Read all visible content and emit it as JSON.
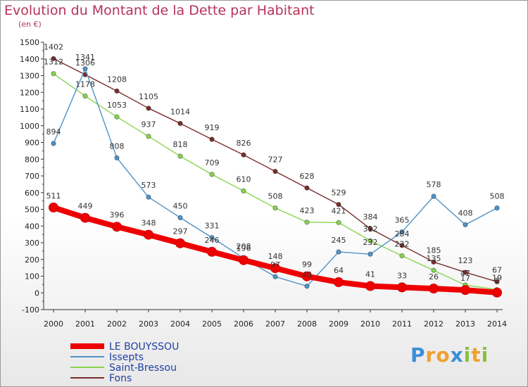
{
  "chart_data": {
    "type": "line",
    "title": "Evolution du Montant de la Dette par Habitant",
    "unit": "(en €)",
    "x": [
      2000,
      2001,
      2002,
      2003,
      2004,
      2005,
      2006,
      2007,
      2008,
      2009,
      2010,
      2011,
      2012,
      2013,
      2014
    ],
    "ylim": [
      -100,
      1500
    ],
    "yticks": [
      -100,
      0,
      100,
      200,
      300,
      400,
      500,
      600,
      700,
      800,
      900,
      1000,
      1100,
      1200,
      1300,
      1400,
      1500
    ],
    "grid": false,
    "legend_position": "bottom-left",
    "series": [
      {
        "name": "LE BOUYSSOU",
        "color": "#ee0000",
        "values": [
          511,
          449,
          396,
          348,
          297,
          246,
          196,
          148,
          99,
          64,
          41,
          33,
          26,
          17,
          2
        ]
      },
      {
        "name": "Issepts",
        "color": "#4f93c8",
        "values": [
          894,
          1341,
          808,
          573,
          450,
          331,
          208,
          97,
          40,
          245,
          232,
          365,
          578,
          408,
          508
        ]
      },
      {
        "name": "Saint-Bressou",
        "color": "#88d450",
        "values": [
          1312,
          1178,
          1053,
          937,
          818,
          709,
          610,
          508,
          423,
          421,
          312,
          222,
          135,
          47,
          19
        ]
      },
      {
        "name": "Fons",
        "color": "#7a2d2d",
        "values": [
          1402,
          1306,
          1208,
          1105,
          1014,
          919,
          826,
          727,
          628,
          529,
          384,
          284,
          185,
          123,
          67
        ]
      }
    ]
  },
  "brand": {
    "letters": [
      "P",
      "r",
      "o",
      "x",
      "i",
      "t",
      "i"
    ],
    "colors": [
      "#3a8fd8",
      "#f0a030",
      "#f0a030",
      "#3a8fd8",
      "#88c040",
      "#f0a030",
      "#88c040"
    ]
  }
}
